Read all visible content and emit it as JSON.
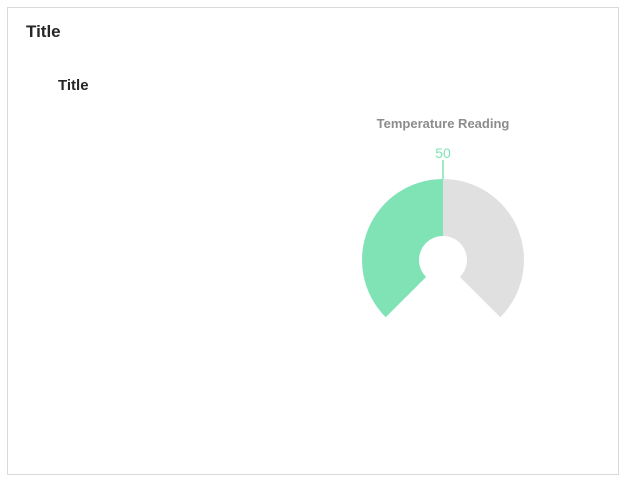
{
  "panel": {
    "title": "Title"
  },
  "chart": {
    "title": "Title"
  },
  "chart_data": {
    "type": "gauge",
    "label": "Temperature Reading",
    "value": 50,
    "value_text": "50",
    "min": 0,
    "max": 100,
    "colors": {
      "fill": "#80e3b5",
      "track": "#e0e0e0",
      "label": "#8c8c8c",
      "value": "#80e3b5"
    }
  }
}
